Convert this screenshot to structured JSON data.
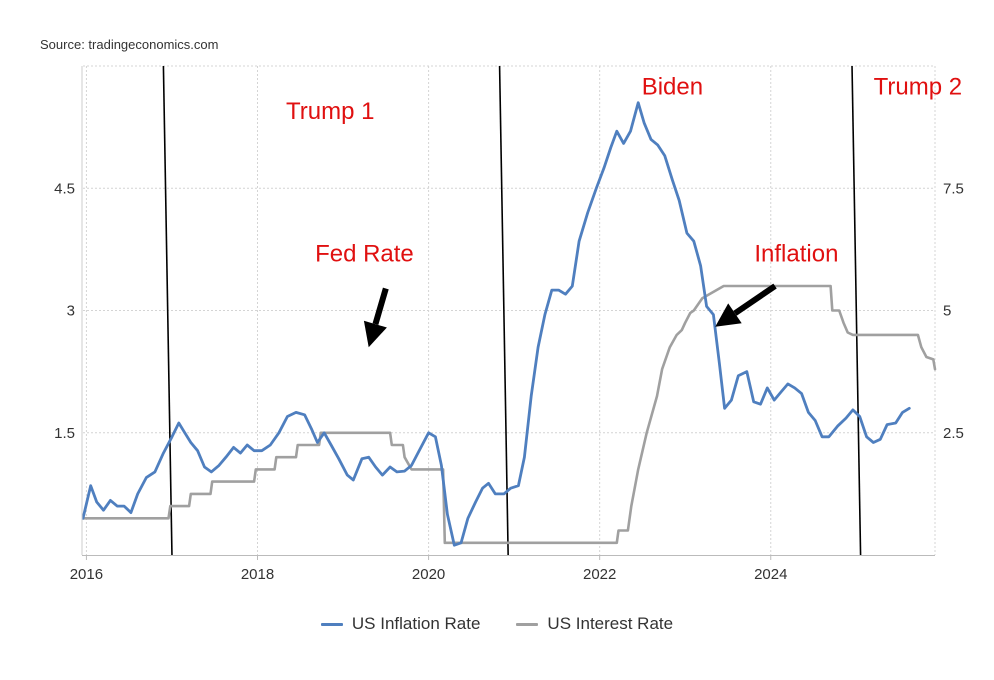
{
  "source": "Source: tradingeconomics.com",
  "colors": {
    "inflation": "#4f7fbf",
    "interest": "#a0a0a0",
    "annotation": "#e01010",
    "grid": "#d4d4d4"
  },
  "chart_data": {
    "type": "line",
    "title": "",
    "x_ticks": [
      "2016",
      "2018",
      "2020",
      "2022",
      "2024"
    ],
    "x_tick_years": [
      2016,
      2018,
      2020,
      2022,
      2024
    ],
    "xlim": [
      2015.96,
      2025.92
    ],
    "left_axis": {
      "ticks": [
        "1.5",
        "3",
        "4.5"
      ],
      "values": [
        1.5,
        3,
        4.5
      ],
      "ylim": [
        0,
        6
      ],
      "series": "US Inflation Rate"
    },
    "right_axis": {
      "ticks": [
        "2.5",
        "5",
        "7.5"
      ],
      "values": [
        2.5,
        5,
        7.5
      ],
      "ylim": [
        0,
        10
      ],
      "series": "US Interest Rate"
    },
    "legend_position": "bottom-center",
    "series": [
      {
        "name": "US Inflation Rate",
        "axis": "left",
        "points": [
          [
            2015.96,
            0.45
          ],
          [
            2016.05,
            0.85
          ],
          [
            2016.12,
            0.65
          ],
          [
            2016.2,
            0.55
          ],
          [
            2016.28,
            0.67
          ],
          [
            2016.36,
            0.6
          ],
          [
            2016.44,
            0.6
          ],
          [
            2016.52,
            0.52
          ],
          [
            2016.6,
            0.75
          ],
          [
            2016.7,
            0.95
          ],
          [
            2016.8,
            1.02
          ],
          [
            2016.9,
            1.25
          ],
          [
            2017.0,
            1.45
          ],
          [
            2017.08,
            1.62
          ],
          [
            2017.15,
            1.5
          ],
          [
            2017.22,
            1.38
          ],
          [
            2017.3,
            1.28
          ],
          [
            2017.38,
            1.08
          ],
          [
            2017.46,
            1.02
          ],
          [
            2017.55,
            1.1
          ],
          [
            2017.63,
            1.2
          ],
          [
            2017.72,
            1.32
          ],
          [
            2017.8,
            1.25
          ],
          [
            2017.88,
            1.35
          ],
          [
            2017.96,
            1.28
          ],
          [
            2018.05,
            1.28
          ],
          [
            2018.15,
            1.35
          ],
          [
            2018.25,
            1.5
          ],
          [
            2018.35,
            1.7
          ],
          [
            2018.45,
            1.75
          ],
          [
            2018.55,
            1.72
          ],
          [
            2018.63,
            1.55
          ],
          [
            2018.7,
            1.38
          ],
          [
            2018.78,
            1.5
          ],
          [
            2018.86,
            1.35
          ],
          [
            2018.95,
            1.18
          ],
          [
            2019.05,
            0.98
          ],
          [
            2019.12,
            0.92
          ],
          [
            2019.22,
            1.18
          ],
          [
            2019.3,
            1.2
          ],
          [
            2019.38,
            1.08
          ],
          [
            2019.46,
            0.98
          ],
          [
            2019.55,
            1.08
          ],
          [
            2019.63,
            1.02
          ],
          [
            2019.72,
            1.03
          ],
          [
            2019.8,
            1.1
          ],
          [
            2019.9,
            1.3
          ],
          [
            2020.0,
            1.5
          ],
          [
            2020.08,
            1.45
          ],
          [
            2020.15,
            1.1
          ],
          [
            2020.22,
            0.5
          ],
          [
            2020.3,
            0.12
          ],
          [
            2020.38,
            0.15
          ],
          [
            2020.46,
            0.45
          ],
          [
            2020.55,
            0.65
          ],
          [
            2020.63,
            0.82
          ],
          [
            2020.7,
            0.88
          ],
          [
            2020.78,
            0.75
          ],
          [
            2020.88,
            0.75
          ],
          [
            2020.96,
            0.82
          ],
          [
            2021.05,
            0.85
          ],
          [
            2021.12,
            1.2
          ],
          [
            2021.2,
            1.95
          ],
          [
            2021.28,
            2.55
          ],
          [
            2021.36,
            2.95
          ],
          [
            2021.44,
            3.25
          ],
          [
            2021.52,
            3.25
          ],
          [
            2021.6,
            3.2
          ],
          [
            2021.68,
            3.3
          ],
          [
            2021.76,
            3.85
          ],
          [
            2021.86,
            4.2
          ],
          [
            2021.96,
            4.5
          ],
          [
            2022.05,
            4.75
          ],
          [
            2022.13,
            5.0
          ],
          [
            2022.2,
            5.2
          ],
          [
            2022.28,
            5.05
          ],
          [
            2022.36,
            5.2
          ],
          [
            2022.45,
            5.55
          ],
          [
            2022.52,
            5.3
          ],
          [
            2022.6,
            5.1
          ],
          [
            2022.68,
            5.03
          ],
          [
            2022.76,
            4.9
          ],
          [
            2022.85,
            4.6
          ],
          [
            2022.93,
            4.35
          ],
          [
            2023.02,
            3.95
          ],
          [
            2023.1,
            3.85
          ],
          [
            2023.18,
            3.55
          ],
          [
            2023.25,
            3.05
          ],
          [
            2023.33,
            2.95
          ],
          [
            2023.4,
            2.35
          ],
          [
            2023.46,
            1.8
          ],
          [
            2023.54,
            1.9
          ],
          [
            2023.62,
            2.2
          ],
          [
            2023.72,
            2.25
          ],
          [
            2023.8,
            1.88
          ],
          [
            2023.88,
            1.85
          ],
          [
            2023.96,
            2.05
          ],
          [
            2024.04,
            1.9
          ],
          [
            2024.12,
            2.0
          ],
          [
            2024.2,
            2.1
          ],
          [
            2024.28,
            2.05
          ],
          [
            2024.36,
            1.98
          ],
          [
            2024.44,
            1.75
          ],
          [
            2024.52,
            1.65
          ],
          [
            2024.6,
            1.45
          ],
          [
            2024.68,
            1.45
          ],
          [
            2024.78,
            1.58
          ],
          [
            2024.88,
            1.68
          ],
          [
            2024.96,
            1.78
          ],
          [
            2025.04,
            1.7
          ],
          [
            2025.12,
            1.45
          ],
          [
            2025.2,
            1.38
          ],
          [
            2025.28,
            1.42
          ],
          [
            2025.36,
            1.6
          ],
          [
            2025.46,
            1.62
          ],
          [
            2025.54,
            1.75
          ],
          [
            2025.62,
            1.8
          ]
        ]
      },
      {
        "name": "US Interest Rate",
        "axis": "right",
        "points": [
          [
            2015.96,
            0.75
          ],
          [
            2016.96,
            0.75
          ],
          [
            2016.98,
            1.0
          ],
          [
            2017.2,
            1.0
          ],
          [
            2017.22,
            1.25
          ],
          [
            2017.45,
            1.25
          ],
          [
            2017.47,
            1.5
          ],
          [
            2017.96,
            1.5
          ],
          [
            2017.98,
            1.75
          ],
          [
            2018.2,
            1.75
          ],
          [
            2018.22,
            2.0
          ],
          [
            2018.45,
            2.0
          ],
          [
            2018.47,
            2.25
          ],
          [
            2018.72,
            2.25
          ],
          [
            2018.74,
            2.5
          ],
          [
            2019.55,
            2.5
          ],
          [
            2019.57,
            2.25
          ],
          [
            2019.7,
            2.25
          ],
          [
            2019.72,
            2.0
          ],
          [
            2019.8,
            1.75
          ],
          [
            2020.17,
            1.75
          ],
          [
            2020.19,
            0.25
          ],
          [
            2022.2,
            0.25
          ],
          [
            2022.22,
            0.5
          ],
          [
            2022.33,
            0.5
          ],
          [
            2022.37,
            1.0
          ],
          [
            2022.45,
            1.75
          ],
          [
            2022.55,
            2.5
          ],
          [
            2022.67,
            3.25
          ],
          [
            2022.73,
            3.8
          ],
          [
            2022.82,
            4.25
          ],
          [
            2022.9,
            4.5
          ],
          [
            2022.96,
            4.6
          ],
          [
            2023.0,
            4.75
          ],
          [
            2023.06,
            4.95
          ],
          [
            2023.1,
            5.0
          ],
          [
            2023.2,
            5.25
          ],
          [
            2023.45,
            5.5
          ],
          [
            2024.7,
            5.5
          ],
          [
            2024.72,
            5.0
          ],
          [
            2024.8,
            5.0
          ],
          [
            2024.85,
            4.75
          ],
          [
            2024.9,
            4.55
          ],
          [
            2024.96,
            4.5
          ],
          [
            2025.72,
            4.5
          ],
          [
            2025.76,
            4.25
          ],
          [
            2025.82,
            4.05
          ],
          [
            2025.9,
            4.0
          ],
          [
            2025.92,
            3.8
          ]
        ]
      }
    ],
    "annotations": [
      {
        "text": "Trump 1",
        "x": 2018.85,
        "y": 5.35
      },
      {
        "text": "Biden",
        "x": 2022.85,
        "y": 5.65
      },
      {
        "text": "Trump 2",
        "x": 2025.72,
        "y": 5.65
      },
      {
        "text": "Fed Rate",
        "x": 2019.25,
        "y": 3.6
      },
      {
        "text": "Inflation",
        "x": 2024.3,
        "y": 3.6
      }
    ],
    "arrows": [
      {
        "name": "fed-rate-arrow",
        "from": [
          2019.5,
          3.27
        ],
        "to": [
          2019.3,
          2.55
        ]
      },
      {
        "name": "inflation-arrow",
        "from": [
          2024.05,
          3.3
        ],
        "to": [
          2023.35,
          2.8
        ]
      }
    ],
    "vertical_lines": [
      {
        "name": "trump1-start-line",
        "x_top": 2016.9,
        "x_bottom": 2017.0
      },
      {
        "name": "biden-start-line",
        "x_top": 2020.83,
        "x_bottom": 2020.93
      },
      {
        "name": "trump2-start-line",
        "x_top": 2024.95,
        "x_bottom": 2025.05
      }
    ]
  }
}
